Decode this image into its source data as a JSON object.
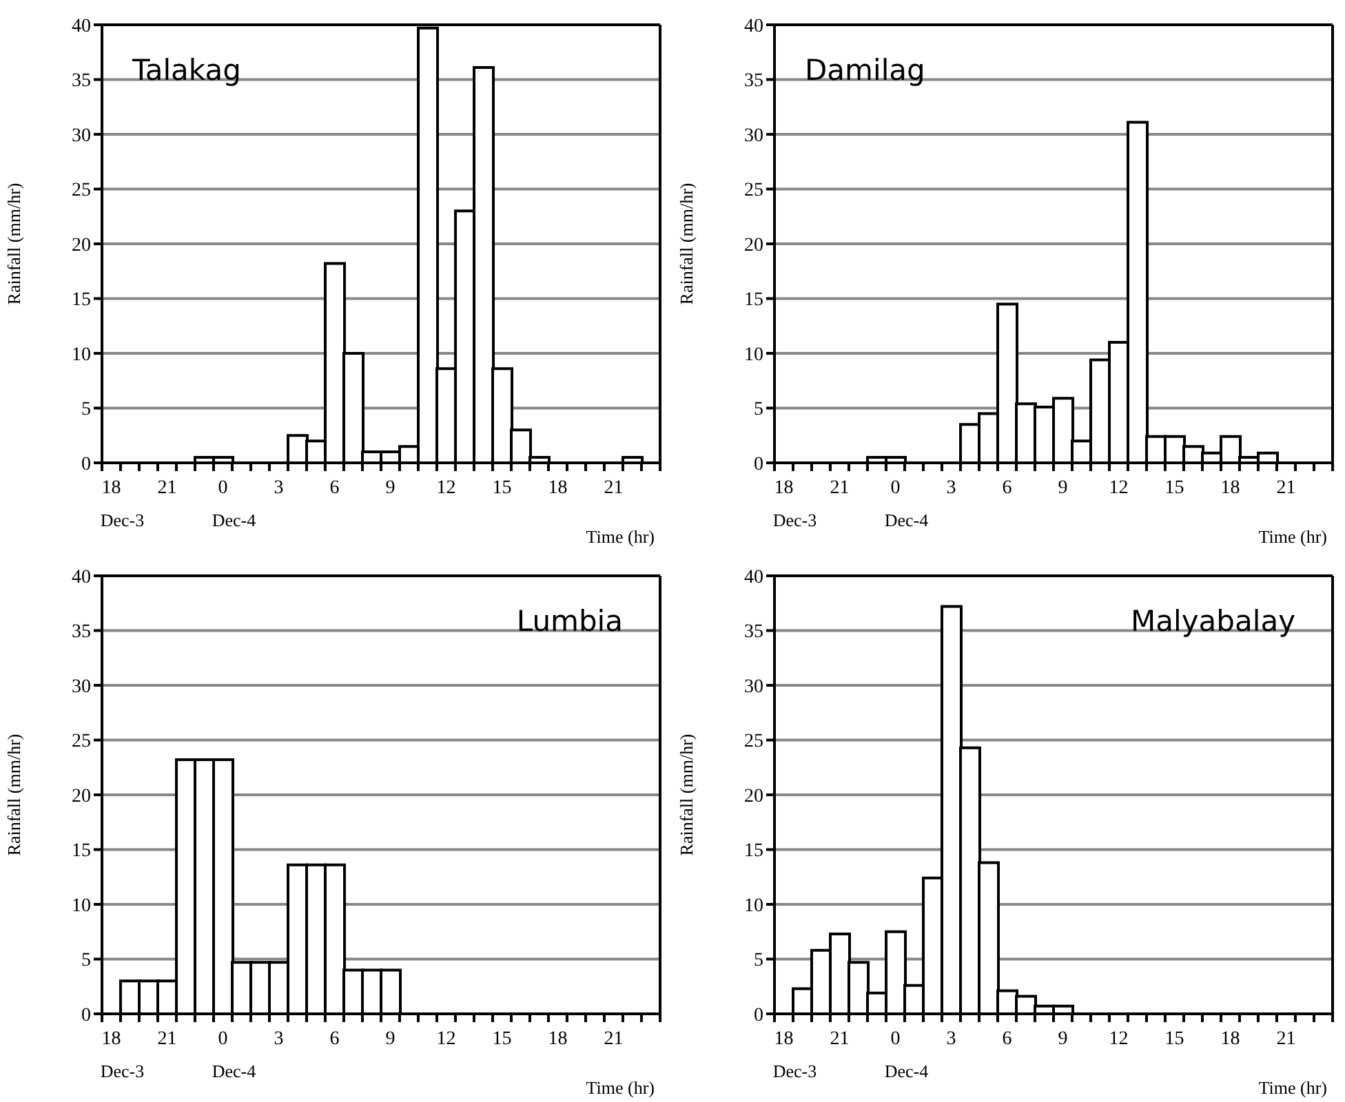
{
  "chart_data": [
    {
      "type": "bar",
      "title": "Talakag",
      "ylabel": "Rainfall (mm/hr)",
      "xlabel": "Time (hr)",
      "categories": [
        "18",
        null,
        null,
        "21",
        null,
        null,
        "0",
        null,
        null,
        "3",
        null,
        null,
        "6",
        null,
        null,
        "9",
        null,
        null,
        "12",
        null,
        null,
        "15",
        null,
        null,
        "18",
        null,
        null,
        "21",
        null,
        null
      ],
      "values": [
        0,
        0,
        0,
        0,
        0,
        0.5,
        0.5,
        0,
        0,
        0,
        2.5,
        2,
        18.2,
        10,
        1,
        1,
        1.5,
        39.7,
        8.6,
        23,
        36.1,
        8.6,
        3,
        0.5,
        0,
        0,
        0,
        0,
        0.5,
        0
      ],
      "color": "#ffffff",
      "ylim": [
        0,
        40
      ],
      "yticks": [
        0,
        5,
        10,
        15,
        20,
        25,
        30,
        35,
        40
      ],
      "grid": "y",
      "annotations": [
        "Dec-3",
        "Dec-4"
      ]
    },
    {
      "type": "bar",
      "title": "Damilag",
      "ylabel": "Rainfall (mm/hr)",
      "xlabel": "Time (hr)",
      "categories": [
        "18",
        null,
        null,
        "21",
        null,
        null,
        "0",
        null,
        null,
        "3",
        null,
        null,
        "6",
        null,
        null,
        "9",
        null,
        null,
        "12",
        null,
        null,
        "15",
        null,
        null,
        "18",
        null,
        null,
        "21",
        null,
        null
      ],
      "values": [
        0,
        0,
        0,
        0,
        0,
        0.5,
        0.5,
        0,
        0,
        0,
        3.5,
        4.5,
        14.5,
        5.4,
        5.1,
        5.9,
        2,
        9.4,
        11,
        31.1,
        2.4,
        2.4,
        1.5,
        0.9,
        2.4,
        0.5,
        0.9,
        0,
        0,
        0
      ],
      "color": "#ffffff",
      "ylim": [
        0,
        40
      ],
      "yticks": [
        0,
        5,
        10,
        15,
        20,
        25,
        30,
        35,
        40
      ],
      "grid": "y",
      "annotations": [
        "Dec-3",
        "Dec-4"
      ]
    },
    {
      "type": "bar",
      "title": "Lumbia",
      "ylabel": "Rainfall (mm/hr)",
      "xlabel": "Time (hr)",
      "categories": [
        "18",
        null,
        null,
        "21",
        null,
        null,
        "0",
        null,
        null,
        "3",
        null,
        null,
        "6",
        null,
        null,
        "9",
        null,
        null,
        "12",
        null,
        null,
        "15",
        null,
        null,
        "18",
        null,
        null,
        "21",
        null,
        null
      ],
      "values": [
        0,
        3,
        3,
        3,
        23.2,
        23.2,
        23.2,
        4.7,
        4.7,
        4.7,
        13.6,
        13.6,
        13.6,
        4,
        4,
        4,
        0,
        0,
        0,
        0,
        0,
        0,
        0,
        0,
        0,
        0,
        0,
        0,
        0,
        0
      ],
      "color": "#ffffff",
      "ylim": [
        0,
        40
      ],
      "yticks": [
        0,
        5,
        10,
        15,
        20,
        25,
        30,
        35,
        40
      ],
      "grid": "y",
      "annotations": [
        "Dec-3",
        "Dec-4"
      ]
    },
    {
      "type": "bar",
      "title": "Malyabalay",
      "ylabel": "Rainfall (mm/hr)",
      "xlabel": "Time (hr)",
      "categories": [
        "18",
        null,
        null,
        "21",
        null,
        null,
        "0",
        null,
        null,
        "3",
        null,
        null,
        "6",
        null,
        null,
        "9",
        null,
        null,
        "12",
        null,
        null,
        "15",
        null,
        null,
        "18",
        null,
        null,
        "21",
        null,
        null
      ],
      "values": [
        0,
        2.3,
        5.8,
        7.3,
        4.7,
        1.9,
        7.5,
        2.6,
        12.4,
        37.2,
        24.3,
        13.8,
        2.1,
        1.6,
        0.7,
        0.7,
        0,
        0,
        0,
        0,
        0,
        0,
        0,
        0,
        0,
        0,
        0,
        0,
        0,
        0
      ],
      "color": "#ffffff",
      "ylim": [
        0,
        40
      ],
      "yticks": [
        0,
        5,
        10,
        15,
        20,
        25,
        30,
        35,
        40
      ],
      "grid": "y",
      "annotations": [
        "Dec-3",
        "Dec-4"
      ]
    }
  ]
}
